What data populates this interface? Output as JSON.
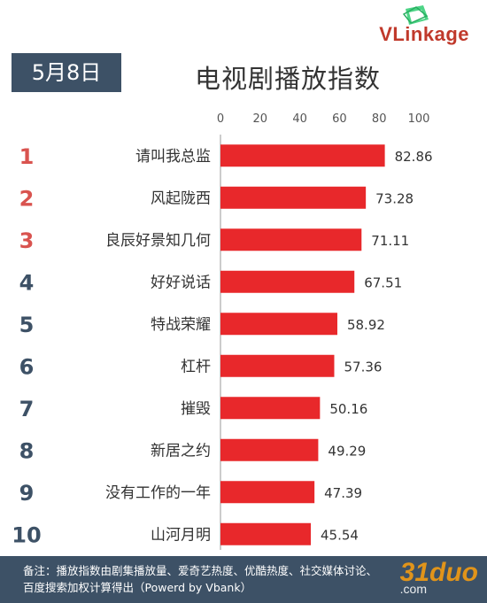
{
  "header": {
    "brand": "VLinkage",
    "date_label": "5月8日",
    "title": "电视剧播放指数"
  },
  "colors": {
    "bar": "#e8282b",
    "rank_top3": "#d9534f",
    "rank_rest": "#3d5166",
    "header_bg": "#3d5166"
  },
  "chart_data": {
    "type": "bar",
    "orientation": "horizontal",
    "title": "电视剧播放指数",
    "xlim": [
      0,
      100
    ],
    "ticks": [
      "0",
      "20",
      "40",
      "60",
      "80",
      "100"
    ],
    "ranks": [
      "1",
      "2",
      "3",
      "4",
      "5",
      "6",
      "7",
      "8",
      "9",
      "10"
    ],
    "categories": [
      "请叫我总监",
      "风起陇西",
      "良辰好景知几何",
      "好好说话",
      "特战荣耀",
      "杠杆",
      "摧毁",
      "新居之约",
      "没有工作的一年",
      "山河月明"
    ],
    "values": [
      82.86,
      73.28,
      71.11,
      67.51,
      58.92,
      57.36,
      50.16,
      49.29,
      47.39,
      45.54
    ],
    "value_labels": [
      "82.86",
      "73.28",
      "71.11",
      "67.51",
      "58.92",
      "57.36",
      "50.16",
      "49.29",
      "47.39",
      "45.54"
    ]
  },
  "footer": {
    "line1": "备注：播放指数由剧集播放量、爱奇艺热度、优酷热度、社交媒体讨论、",
    "line2": "百度搜索加权计算得出（Powerd by Vbank）"
  },
  "watermark": {
    "text": "31duo",
    "suffix": ".com"
  }
}
